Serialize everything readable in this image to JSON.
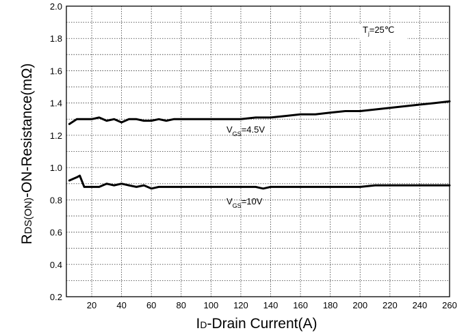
{
  "chart_data": {
    "type": "line",
    "title": "",
    "xlabel": {
      "main": "I",
      "sub": "D",
      "rest": "-Drain Current(A)"
    },
    "ylabel": {
      "main": "R",
      "sub": "DS(ON)",
      "rest": "-ON-Resistance(mΩ)"
    },
    "xlim": [
      3,
      260
    ],
    "ylim": [
      0.2,
      2.0
    ],
    "xticks": [
      "20",
      "40",
      "60",
      "80",
      "100",
      "120",
      "140",
      "160",
      "180",
      "200",
      "220",
      "240",
      "260"
    ],
    "yticks": [
      "0.2",
      "0.4",
      "0.6",
      "0.8",
      "1.0",
      "1.2",
      "1.4",
      "1.6",
      "1.8",
      "2.0"
    ],
    "grid": true,
    "grid_style": "dotted",
    "series": [
      {
        "name": "V_GS=4.5V",
        "x": [
          5,
          10,
          15,
          20,
          25,
          30,
          35,
          40,
          45,
          50,
          55,
          60,
          65,
          70,
          75,
          80,
          90,
          100,
          110,
          120,
          130,
          140,
          150,
          160,
          170,
          180,
          190,
          200,
          210,
          220,
          230,
          240,
          250,
          260
        ],
        "y": [
          1.27,
          1.3,
          1.3,
          1.3,
          1.31,
          1.29,
          1.3,
          1.28,
          1.3,
          1.3,
          1.29,
          1.29,
          1.3,
          1.29,
          1.3,
          1.3,
          1.3,
          1.3,
          1.3,
          1.3,
          1.31,
          1.31,
          1.32,
          1.33,
          1.33,
          1.34,
          1.35,
          1.35,
          1.36,
          1.37,
          1.38,
          1.39,
          1.4,
          1.41
        ]
      },
      {
        "name": "V_GS=10V",
        "x": [
          5,
          10,
          12,
          15,
          20,
          25,
          30,
          35,
          40,
          45,
          50,
          55,
          60,
          65,
          70,
          75,
          80,
          90,
          100,
          110,
          120,
          130,
          135,
          140,
          150,
          160,
          170,
          180,
          190,
          200,
          210,
          220,
          230,
          240,
          250,
          260
        ],
        "y": [
          0.92,
          0.94,
          0.95,
          0.88,
          0.88,
          0.88,
          0.9,
          0.89,
          0.9,
          0.89,
          0.88,
          0.89,
          0.87,
          0.88,
          0.88,
          0.88,
          0.88,
          0.88,
          0.88,
          0.88,
          0.88,
          0.88,
          0.87,
          0.88,
          0.88,
          0.88,
          0.88,
          0.88,
          0.88,
          0.88,
          0.89,
          0.89,
          0.89,
          0.89,
          0.89,
          0.89
        ]
      }
    ],
    "annotations": [
      {
        "id": "vgs45",
        "V": "V",
        "sub": "GS",
        "rest": "=4.5V"
      },
      {
        "id": "vgs10",
        "V": "V",
        "sub": "GS",
        "rest": "=10V"
      },
      {
        "id": "tj",
        "T": "T",
        "sub": "j",
        "rest": "=25℃"
      }
    ]
  }
}
